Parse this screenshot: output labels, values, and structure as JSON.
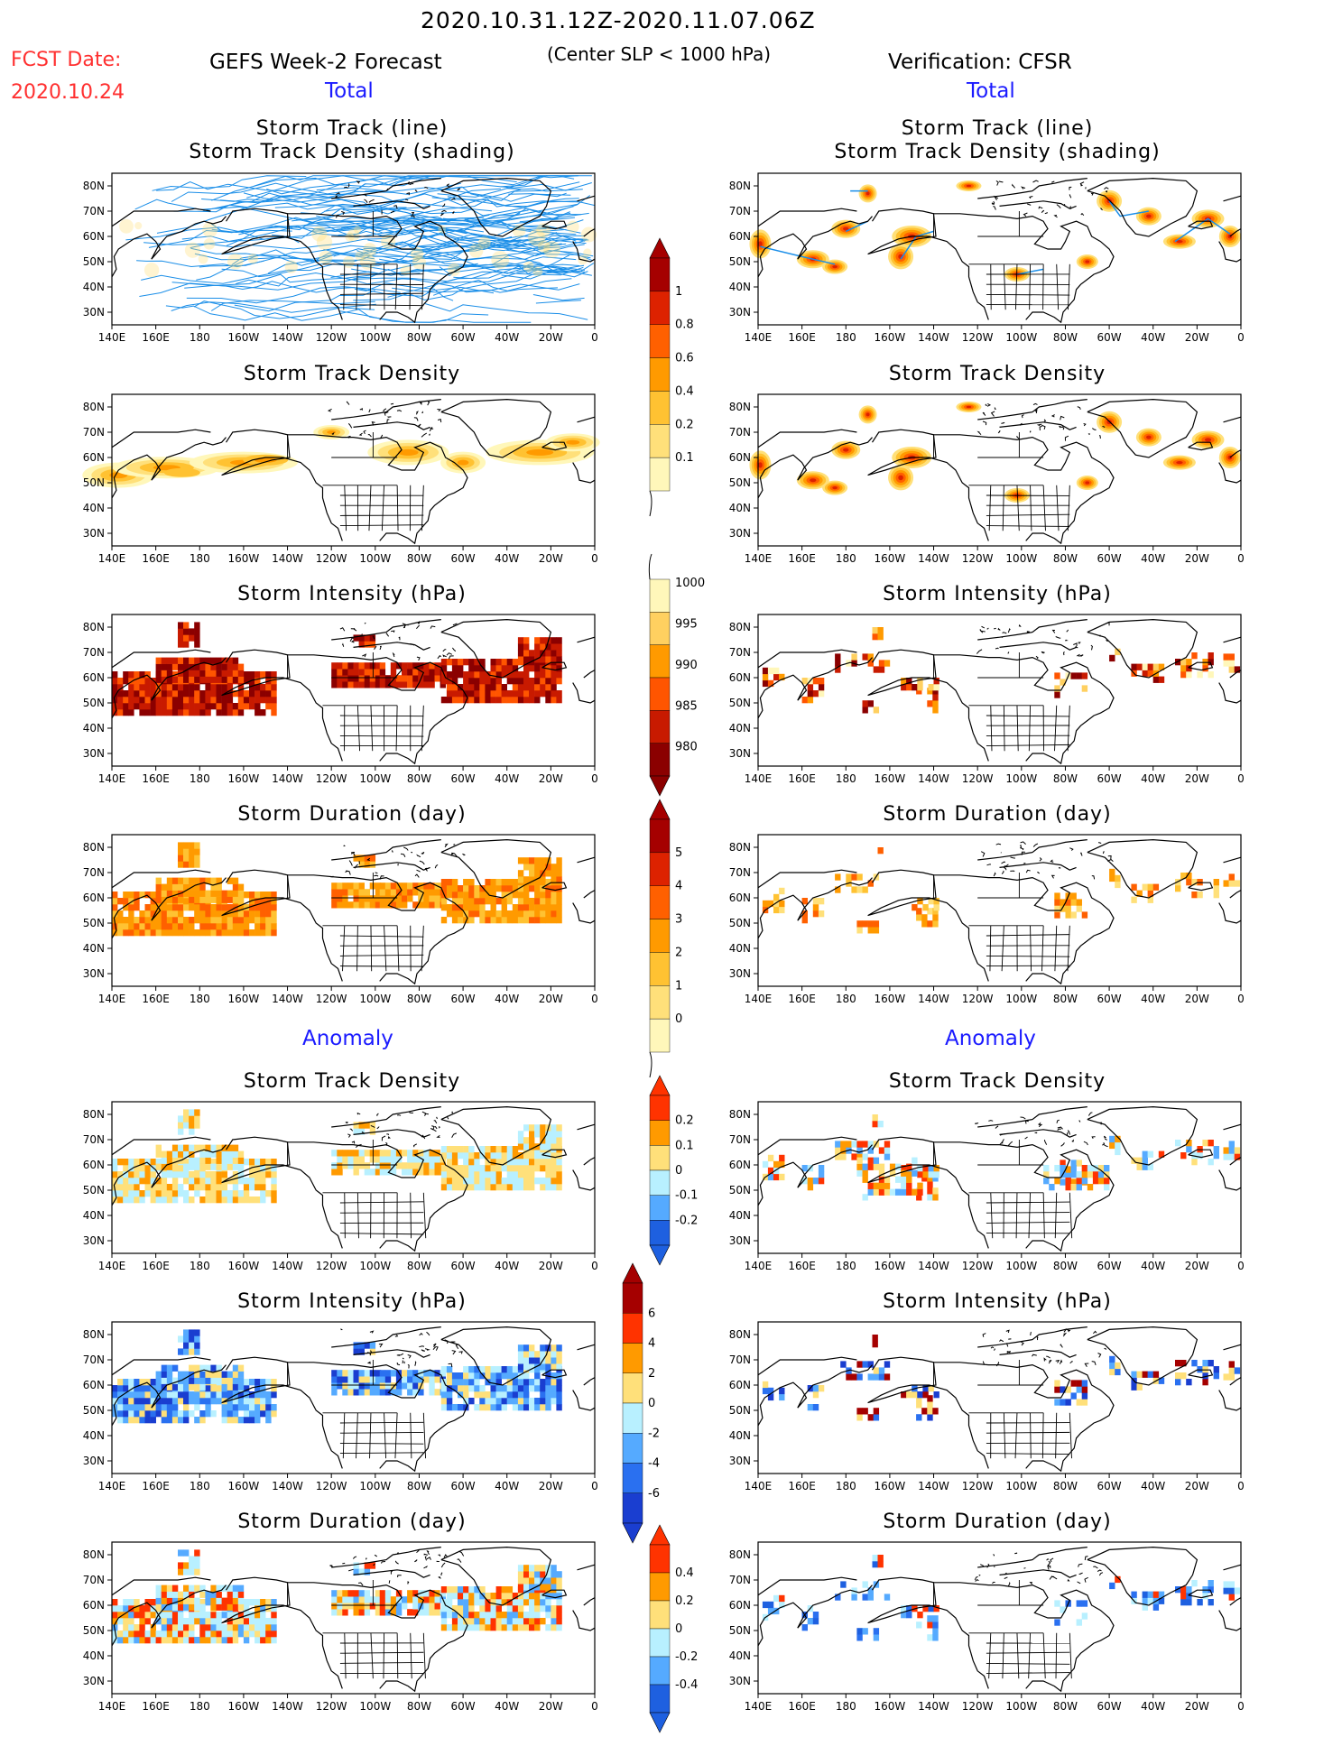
{
  "header": {
    "date_range": "2020.10.31.12Z-2020.11.07.06Z",
    "condition": "(Center SLP < 1000 hPa)",
    "fcst_label": "FCST Date:",
    "fcst_date": "2020.10.24",
    "left_title": "GEFS Week-2 Forecast",
    "right_title": "Verification: CFSR",
    "total_label": "Total",
    "anomaly_label": "Anomaly"
  },
  "panel_titles": {
    "track_line": "Storm Track (line)",
    "track_shading": "Storm Track Density (shading)",
    "density": "Storm Track Density",
    "intensity": "Storm Intensity (hPa)",
    "duration": "Storm Duration (day)"
  },
  "axes": {
    "lon_labels": [
      "140E",
      "160E",
      "180",
      "160W",
      "140W",
      "120W",
      "100W",
      "80W",
      "60W",
      "40W",
      "20W",
      "0"
    ],
    "lat_labels": [
      "80N",
      "70N",
      "60N",
      "50N",
      "40N",
      "30N"
    ]
  },
  "colorbars": {
    "density_total": {
      "labels": [
        "1",
        "0.8",
        "0.6",
        "0.4",
        "0.2",
        "0.1"
      ],
      "colors": [
        "#a50000",
        "#dd2200",
        "#ff6000",
        "#ff9a00",
        "#ffc232",
        "#ffe07a",
        "#fff7ba"
      ]
    },
    "intensity_total": {
      "labels": [
        "1000",
        "995",
        "990",
        "985",
        "980"
      ],
      "colors": [
        "#fff7ba",
        "#ffd060",
        "#ff9a00",
        "#ff5500",
        "#c81a00",
        "#8b0000"
      ]
    },
    "duration_total": {
      "labels": [
        "5",
        "4",
        "3",
        "2",
        "1",
        "0"
      ],
      "colors": [
        "#a50000",
        "#dd2200",
        "#ff6000",
        "#ff9a00",
        "#ffc232",
        "#ffe07a",
        "#fff7ba"
      ]
    },
    "density_anom": {
      "labels": [
        "0.2",
        "0.1",
        "0",
        "-0.1",
        "-0.2"
      ],
      "colors": [
        "#ff3300",
        "#ff9a00",
        "#ffe07a",
        "#b8f0ff",
        "#55aaff",
        "#1e60e0"
      ]
    },
    "intensity_anom": {
      "labels": [
        "6",
        "4",
        "2",
        "0",
        "-2",
        "-4",
        "-6"
      ],
      "colors": [
        "#a50000",
        "#ff3300",
        "#ff9a00",
        "#ffe07a",
        "#b8f0ff",
        "#55aaff",
        "#2a70f0",
        "#1a3ed0"
      ]
    },
    "duration_anom": {
      "labels": [
        "0.4",
        "0.2",
        "0",
        "-0.2",
        "-0.4"
      ],
      "colors": [
        "#ff3300",
        "#ff9a00",
        "#ffe07a",
        "#b8f0ff",
        "#55aaff",
        "#1e60e0"
      ]
    }
  },
  "colors": {
    "track_line": "#1a8ee8",
    "coast": "#000000",
    "title_blue": "#1a1aff",
    "fcst_red": "#ff3030"
  }
}
